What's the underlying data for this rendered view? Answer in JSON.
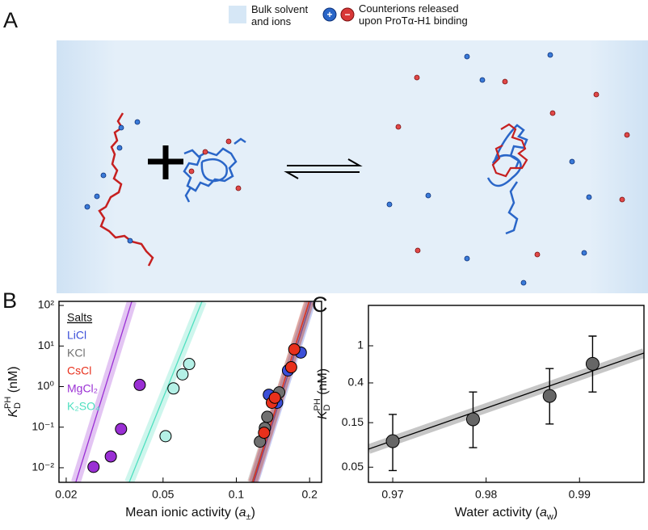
{
  "diagram": {
    "panel_label": "A",
    "legend": {
      "bulk": [
        "Bulk solvent",
        "and ions"
      ],
      "counterions": [
        "Counterions released",
        "upon ProTα-H1 binding"
      ],
      "plus": "+",
      "minus": "−"
    }
  },
  "chart_data": [
    {
      "type": "scatter",
      "panel_label": "B",
      "xlog": true,
      "ylog": true,
      "xlabel": {
        "text": "Mean ionic activity (",
        "var": "a",
        "sub": "±",
        "close": ")"
      },
      "ylabel": {
        "main": "K",
        "sub": "D",
        "sup": "PH",
        "unit": " (nM)"
      },
      "xlim": [
        0.01868,
        0.224
      ],
      "xticks": [
        0.02,
        0.05,
        0.1,
        0.2
      ],
      "ylim": [
        0.00437,
        126
      ],
      "yticks": [
        {
          "value": 0.01,
          "label": "10⁻²"
        },
        {
          "value": 0.1,
          "label": "10⁻¹"
        },
        {
          "value": 1,
          "label": "10⁰"
        },
        {
          "value": 10,
          "label": "10¹"
        },
        {
          "value": 100,
          "label": "10²"
        }
      ],
      "legend_title": "Salts",
      "legend": "upper left",
      "series": [
        {
          "name": "LiCl",
          "color": "#3b4fd8",
          "fill": "#3b4fd8",
          "x": [
            0.136,
            0.147,
            0.163,
            0.184
          ],
          "values": [
            0.63,
            0.4,
            2.5,
            6.9
          ],
          "fit": {
            "x": [
              0.118,
              0.203
            ],
            "y": [
              0.00437,
              126
            ]
          }
        },
        {
          "name": "KCl",
          "color": "#707070",
          "fill": "#707070",
          "x": [
            0.125,
            0.131,
            0.134,
            0.15
          ],
          "values": [
            0.044,
            0.096,
            0.18,
            0.72
          ],
          "fit": {
            "x": [
              0.116,
              0.2
            ],
            "y": [
              0.00437,
              126
            ]
          }
        },
        {
          "name": "CsCl",
          "color": "#e8301c",
          "fill": "#e8301c",
          "x": [
            0.13,
            0.14,
            0.144,
            0.168,
            0.173
          ],
          "values": [
            0.073,
            0.4,
            0.53,
            3.0,
            8.3
          ],
          "fit": {
            "x": [
              0.117,
              0.199
            ],
            "y": [
              0.00437,
              126
            ]
          }
        },
        {
          "name": "MgCl₂",
          "color": "#9a2fd4",
          "fill": "#9a2fd4",
          "x": [
            0.0259,
            0.0305,
            0.0336,
            0.0401
          ],
          "values": [
            0.0105,
            0.019,
            0.09,
            1.1
          ],
          "fit": {
            "x": [
              0.0219,
              0.0372
            ],
            "y": [
              0.00437,
              126
            ]
          }
        },
        {
          "name": "K₂SO₄",
          "color": "#4fe0c0",
          "fill": "#b4f0e6",
          "x": [
            0.0512,
            0.0552,
            0.0601,
            0.064
          ],
          "values": [
            0.06,
            0.9,
            2.0,
            3.6
          ],
          "fit": {
            "x": [
              0.0363,
              0.0723
            ],
            "y": [
              0.00437,
              126
            ]
          }
        }
      ]
    },
    {
      "type": "scatter",
      "panel_label": "C",
      "xlog": false,
      "ylog": true,
      "xlabel": {
        "text": "Water activity (",
        "var": "a",
        "sub": "w",
        "close": ")"
      },
      "ylabel": {
        "main": "K",
        "sub": "D",
        "sup": "PH",
        "unit": " (nM)"
      },
      "xlim": [
        0.9674,
        0.9969
      ],
      "xticks": [
        0.97,
        0.98,
        0.99
      ],
      "ylim": [
        0.0344,
        2.71
      ],
      "yticks": [
        0.05,
        0.15,
        0.4,
        1
      ],
      "series": [
        {
          "color": "#333333",
          "fill": "#666666",
          "x": [
            0.97,
            0.9786,
            0.9868,
            0.9914
          ],
          "values": [
            0.095,
            0.163,
            0.29,
            0.64
          ],
          "y_low": [
            0.046,
            0.081,
            0.145,
            0.32
          ],
          "y_high": [
            0.184,
            0.32,
            0.57,
            1.27
          ],
          "fit": {
            "x": [
              0.9674,
              0.9969
            ],
            "y": [
              0.078,
              0.836
            ]
          }
        }
      ]
    }
  ]
}
